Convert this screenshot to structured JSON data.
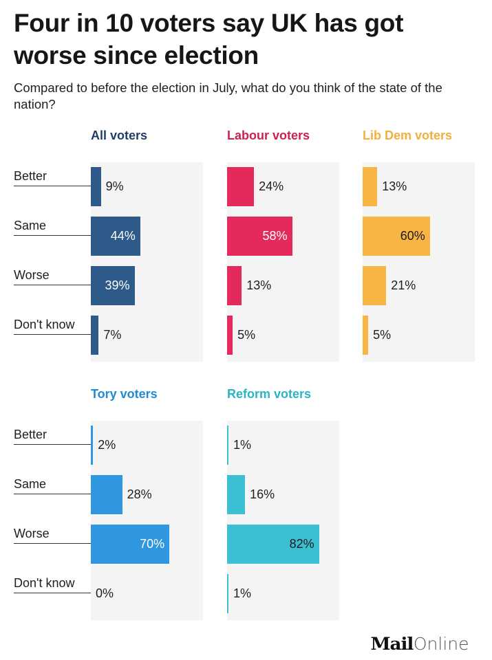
{
  "title": "Four in 10 voters say UK has got worse since election",
  "subtitle": "Compared to before the election in July, what do you think of the state of the nation?",
  "logo": {
    "mail": "Mail",
    "online": "Online"
  },
  "chart_data": {
    "type": "bar",
    "orientation": "horizontal",
    "title": "Four in 10 voters say UK has got worse since election",
    "subtitle": "Compared to before the election in July, what do you think of the state of the nation?",
    "categories": [
      "Better",
      "Same",
      "Worse",
      "Don't know"
    ],
    "xlim": [
      0,
      100
    ],
    "unit": "%",
    "panels": [
      {
        "name": "All voters",
        "color": "#2e5a8a",
        "title_color": "#1f3d66",
        "values": [
          9,
          44,
          39,
          7
        ],
        "labels": [
          "9%",
          "44%",
          "39%",
          "7%"
        ]
      },
      {
        "name": "Labour voters",
        "color": "#e42a5a",
        "title_color": "#d01f4f",
        "values": [
          24,
          58,
          13,
          5
        ],
        "labels": [
          "24%",
          "58%",
          "13%",
          "5%"
        ]
      },
      {
        "name": "Lib Dem voters",
        "color": "#f8b545",
        "title_color": "#f4ae3e",
        "values": [
          13,
          60,
          21,
          5
        ],
        "labels": [
          "13%",
          "60%",
          "21%",
          "5%"
        ]
      },
      {
        "name": "Tory voters",
        "color": "#2f97df",
        "title_color": "#1f8ad4",
        "values": [
          2,
          28,
          70,
          0
        ],
        "labels": [
          "2%",
          "28%",
          "70%",
          "0%"
        ]
      },
      {
        "name": "Reform voters",
        "color": "#3cbfd3",
        "title_color": "#2bb3c6",
        "values": [
          1,
          16,
          82,
          1
        ],
        "labels": [
          "1%",
          "16%",
          "82%",
          "1%"
        ]
      }
    ]
  }
}
